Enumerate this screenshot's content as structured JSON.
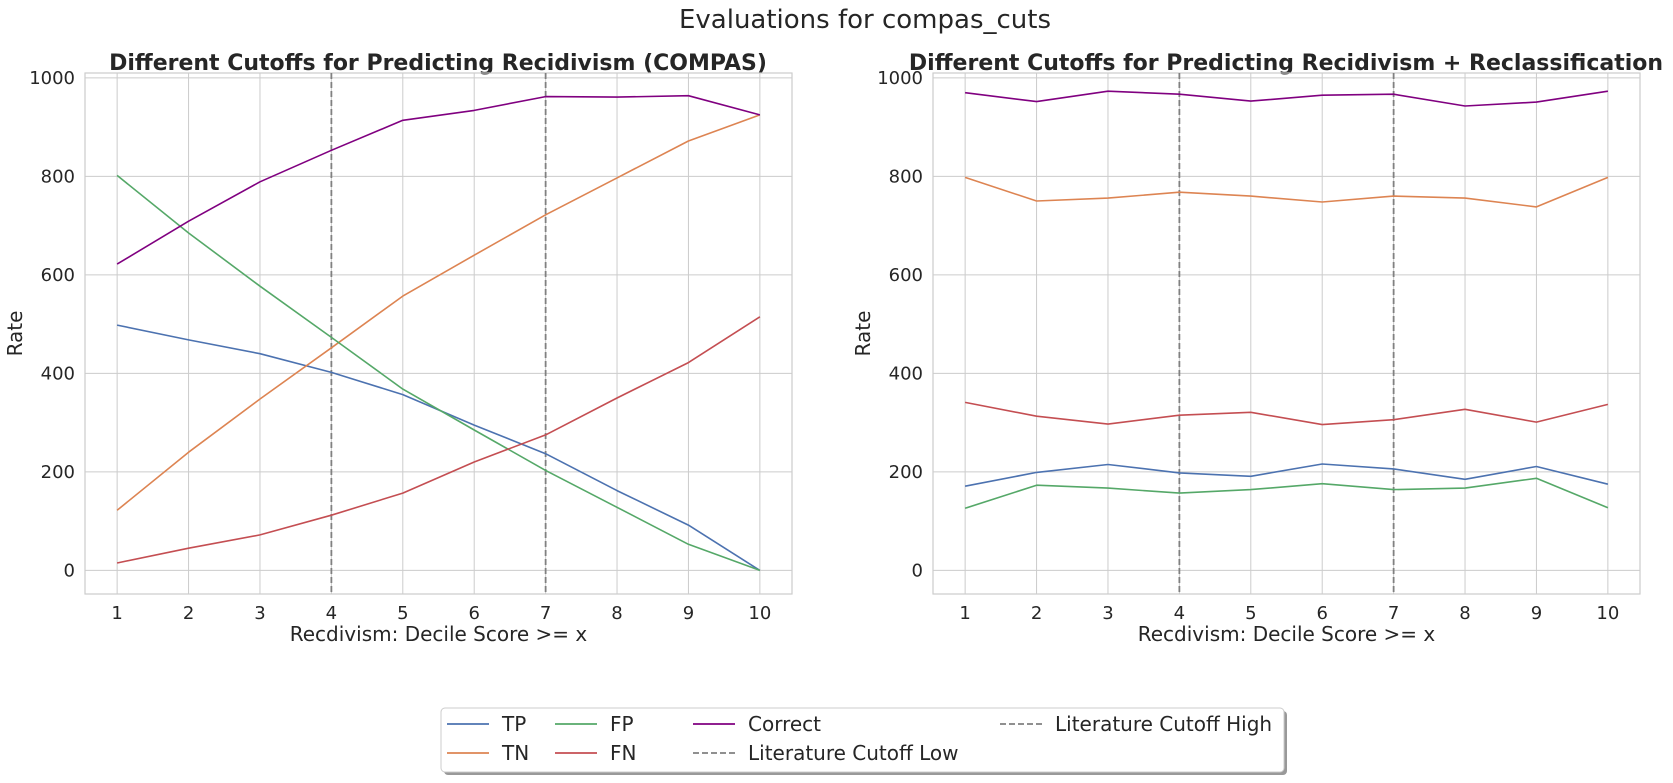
{
  "figure": {
    "suptitle": "Evaluations for compas_cuts"
  },
  "colors": {
    "TP": "#4c72b0",
    "TN": "#dd8452",
    "FP": "#55a868",
    "FN": "#c44e52",
    "Correct": "#800080",
    "cutoff": "#808080",
    "grid": "#cccccc"
  },
  "chart_data": [
    {
      "type": "line",
      "title": "Different Cutoffs for Predicting Recidivism (COMPAS)",
      "xlabel": "Recdivism: Decile Score >= x",
      "ylabel": "Rate",
      "x": [
        1,
        2,
        3,
        4,
        5,
        6,
        7,
        8,
        9,
        10
      ],
      "xlim": [
        0.55,
        10.45
      ],
      "ylim": [
        -48,
        1010
      ],
      "yticks": [
        0,
        200,
        400,
        600,
        800,
        1000
      ],
      "grid": true,
      "series": [
        {
          "name": "TP",
          "values": [
            498,
            468,
            440,
            402,
            357,
            295,
            237,
            162,
            92,
            0
          ]
        },
        {
          "name": "TN",
          "values": [
            122,
            240,
            348,
            452,
            557,
            640,
            722,
            797,
            872,
            925
          ]
        },
        {
          "name": "FP",
          "values": [
            802,
            685,
            577,
            473,
            368,
            285,
            203,
            128,
            53,
            0
          ]
        },
        {
          "name": "FN",
          "values": [
            15,
            45,
            72,
            112,
            157,
            220,
            275,
            350,
            422,
            515
          ]
        },
        {
          "name": "Correct",
          "values": [
            622,
            709,
            789,
            853,
            914,
            934,
            962,
            961,
            964,
            925
          ]
        }
      ],
      "cutoffs": [
        {
          "name": "Literature Cutoff Low",
          "x": 4
        },
        {
          "name": "Literature Cutoff High",
          "x": 7
        }
      ]
    },
    {
      "type": "line",
      "title": "Different Cutoffs for Predicting Recidivism + Reclassification",
      "xlabel": "Recdivism: Decile Score >= x",
      "ylabel": "Rate",
      "x": [
        1,
        2,
        3,
        4,
        5,
        6,
        7,
        8,
        9,
        10
      ],
      "xlim": [
        0.55,
        10.45
      ],
      "ylim": [
        -48,
        1010
      ],
      "yticks": [
        0,
        200,
        400,
        600,
        800,
        1000
      ],
      "grid": true,
      "series": [
        {
          "name": "TP",
          "values": [
            171,
            199,
            215,
            198,
            191,
            216,
            206,
            185,
            211,
            175
          ]
        },
        {
          "name": "TN",
          "values": [
            798,
            750,
            756,
            768,
            760,
            748,
            760,
            756,
            738,
            798
          ]
        },
        {
          "name": "FP",
          "values": [
            126,
            173,
            167,
            157,
            164,
            176,
            164,
            167,
            187,
            127
          ]
        },
        {
          "name": "FN",
          "values": [
            341,
            313,
            297,
            315,
            321,
            296,
            306,
            327,
            301,
            337
          ]
        },
        {
          "name": "Correct",
          "values": [
            970,
            952,
            973,
            967,
            953,
            965,
            967,
            943,
            951,
            973
          ]
        }
      ],
      "cutoffs": [
        {
          "name": "Literature Cutoff Low",
          "x": 4
        },
        {
          "name": "Literature Cutoff High",
          "x": 7
        }
      ]
    }
  ],
  "legend": {
    "placement": "bottom-center",
    "entries": [
      {
        "label": "TP",
        "color_key": "TP",
        "style": "solid"
      },
      {
        "label": "TN",
        "color_key": "TN",
        "style": "solid"
      },
      {
        "label": "FP",
        "color_key": "FP",
        "style": "solid"
      },
      {
        "label": "FN",
        "color_key": "FN",
        "style": "solid"
      },
      {
        "label": "Correct",
        "color_key": "Correct",
        "style": "solid"
      },
      {
        "label": "Literature Cutoff Low",
        "color_key": "cutoff",
        "style": "dashed"
      },
      {
        "label": "Literature Cutoff High",
        "color_key": "cutoff",
        "style": "dashed"
      }
    ]
  }
}
